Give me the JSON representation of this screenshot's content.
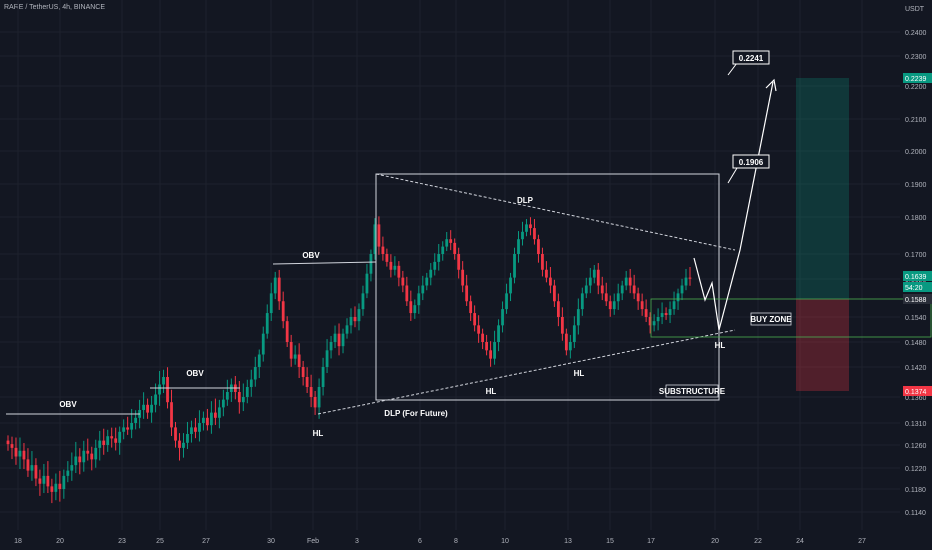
{
  "header": {
    "title": "RARE / TetherUS, 4h, BINANCE"
  },
  "chart_data": {
    "type": "candlestick",
    "symbol": "RARE / TetherUS",
    "interval": "4h",
    "exchange": "BINANCE",
    "y_axis": {
      "unit": "USDT",
      "range": [
        0.112,
        0.242
      ],
      "ticks": [
        "0.2400",
        "0.2300",
        "0.2200",
        "0.2100",
        "0.2000",
        "0.1900",
        "0.1800",
        "0.1700",
        "0.1620",
        "0.1540",
        "0.1480",
        "0.1420",
        "0.1360",
        "0.1310",
        "0.1260",
        "0.1220",
        "0.1180",
        "0.1140"
      ]
    },
    "x_axis": {
      "ticks": [
        "18",
        "20",
        "23",
        "25",
        "27",
        "30",
        "Feb",
        "3",
        "6",
        "8",
        "10",
        "13",
        "15",
        "17",
        "20",
        "22",
        "24",
        "27"
      ]
    },
    "price_badges": {
      "target": "0.2239",
      "current": "0.1639",
      "countdown": "54:20",
      "entry": "0.1588",
      "stop": "0.1374"
    },
    "annotations": {
      "obv_labels": [
        "OBV",
        "OBV",
        "OBV"
      ],
      "hl_labels": [
        "HL",
        "HL",
        "HL",
        "HL"
      ],
      "dlp": "DLP",
      "dlp_future": "DLP (For Future)",
      "buy_zone": "BUY ZONE",
      "substructure": "SUBSTRUCTURE",
      "target_1": "0.1906",
      "target_2": "0.2241"
    },
    "candles_close": [
      0.1262,
      0.1255,
      0.124,
      0.125,
      0.1235,
      0.1215,
      0.1225,
      0.12,
      0.119,
      0.1205,
      0.1185,
      0.1175,
      0.119,
      0.118,
      0.1205,
      0.1215,
      0.1225,
      0.124,
      0.123,
      0.125,
      0.1245,
      0.1235,
      0.1255,
      0.127,
      0.126,
      0.128,
      0.1275,
      0.1265,
      0.129,
      0.13,
      0.1295,
      0.131,
      0.132,
      0.1335,
      0.1345,
      0.133,
      0.1345,
      0.1365,
      0.1385,
      0.14,
      0.135,
      0.13,
      0.127,
      0.1255,
      0.1265,
      0.1285,
      0.13,
      0.129,
      0.131,
      0.132,
      0.1305,
      0.133,
      0.132,
      0.134,
      0.1355,
      0.137,
      0.1385,
      0.137,
      0.135,
      0.136,
      0.138,
      0.1395,
      0.142,
      0.145,
      0.15,
      0.155,
      0.16,
      0.164,
      0.158,
      0.153,
      0.148,
      0.144,
      0.145,
      0.142,
      0.14,
      0.138,
      0.136,
      0.134,
      0.138,
      0.142,
      0.146,
      0.148,
      0.15,
      0.147,
      0.15,
      0.152,
      0.154,
      0.153,
      0.156,
      0.16,
      0.165,
      0.17,
      0.178,
      0.172,
      0.17,
      0.168,
      0.166,
      0.167,
      0.164,
      0.162,
      0.158,
      0.155,
      0.157,
      0.16,
      0.162,
      0.164,
      0.166,
      0.168,
      0.17,
      0.172,
      0.174,
      0.173,
      0.17,
      0.166,
      0.162,
      0.158,
      0.155,
      0.152,
      0.15,
      0.148,
      0.146,
      0.144,
      0.148,
      0.152,
      0.156,
      0.16,
      0.164,
      0.17,
      0.174,
      0.176,
      0.178,
      0.177,
      0.174,
      0.17,
      0.166,
      0.164,
      0.162,
      0.158,
      0.154,
      0.15,
      0.146,
      0.148,
      0.152,
      0.156,
      0.16,
      0.162,
      0.164,
      0.166,
      0.162,
      0.16,
      0.158,
      0.156,
      0.158,
      0.16,
      0.162,
      0.164,
      0.162,
      0.16,
      0.158,
      0.156,
      0.154,
      0.152,
      0.153,
      0.154,
      0.155,
      0.1545,
      0.156,
      0.158,
      0.16,
      0.162,
      0.164,
      0.1639
    ]
  }
}
